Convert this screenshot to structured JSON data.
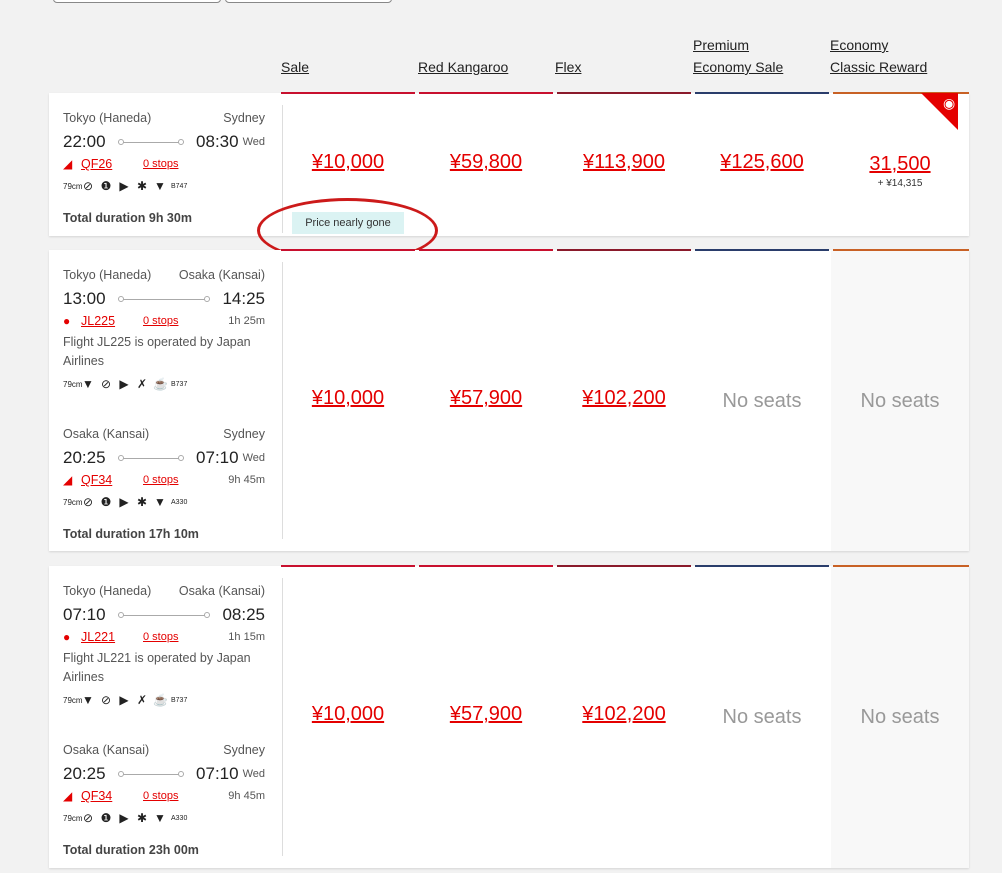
{
  "columns": [
    {
      "label1": "",
      "label2": "Sale"
    },
    {
      "label1": "",
      "label2": "Red Kangaroo"
    },
    {
      "label1": "",
      "label2": "Flex"
    },
    {
      "label1": "Premium",
      "label2": "Economy Sale"
    },
    {
      "label1": "Economy",
      "label2": "Classic Reward"
    }
  ],
  "row1": {
    "leg1": {
      "from": "Tokyo (Haneda)",
      "to": "Sydney",
      "dep": "22:00",
      "arr": "08:30",
      "day": "Wed",
      "flight": "QF26",
      "stops": "0 stops",
      "aircraft": "B747"
    },
    "total": "Total duration 9h 30m",
    "prices": [
      "¥10,000",
      "¥59,800",
      "¥113,900",
      "¥125,600"
    ],
    "reward_points": "31,500",
    "reward_extra": "+ ¥14,315",
    "nearly_gone": "Price nearly gone"
  },
  "row2": {
    "leg1": {
      "from": "Tokyo (Haneda)",
      "to": "Osaka (Kansai)",
      "dep": "13:00",
      "arr": "14:25",
      "flight": "JL225",
      "stops": "0 stops",
      "duration": "1h 25m",
      "operated": "Flight JL225 is operated by Japan Airlines",
      "aircraft": "B737"
    },
    "leg2": {
      "from": "Osaka (Kansai)",
      "to": "Sydney",
      "dep": "20:25",
      "arr": "07:10",
      "day": "Wed",
      "flight": "QF34",
      "stops": "0 stops",
      "duration": "9h 45m",
      "aircraft": "A330"
    },
    "total": "Total duration 17h 10m",
    "prices": [
      "¥10,000",
      "¥57,900",
      "¥102,200"
    ],
    "no_seats": "No seats"
  },
  "row3": {
    "leg1": {
      "from": "Tokyo (Haneda)",
      "to": "Osaka (Kansai)",
      "dep": "07:10",
      "arr": "08:25",
      "flight": "JL221",
      "stops": "0 stops",
      "duration": "1h 15m",
      "operated": "Flight JL221 is operated by Japan Airlines",
      "aircraft": "B737"
    },
    "leg2": {
      "from": "Osaka (Kansai)",
      "to": "Sydney",
      "dep": "20:25",
      "arr": "07:10",
      "day": "Wed",
      "flight": "QF34",
      "stops": "0 stops",
      "duration": "9h 45m",
      "aircraft": "A330"
    },
    "total": "Total duration 23h 00m",
    "prices": [
      "¥10,000",
      "¥57,900",
      "¥102,200"
    ],
    "no_seats": "No seats"
  },
  "amenity_text": "79cm",
  "colors": {
    "brand_red": "#e40000",
    "sale": "#c8102e",
    "flex": "#8a1a2b",
    "premium": "#2a3d6b",
    "reward": "#c86125"
  }
}
